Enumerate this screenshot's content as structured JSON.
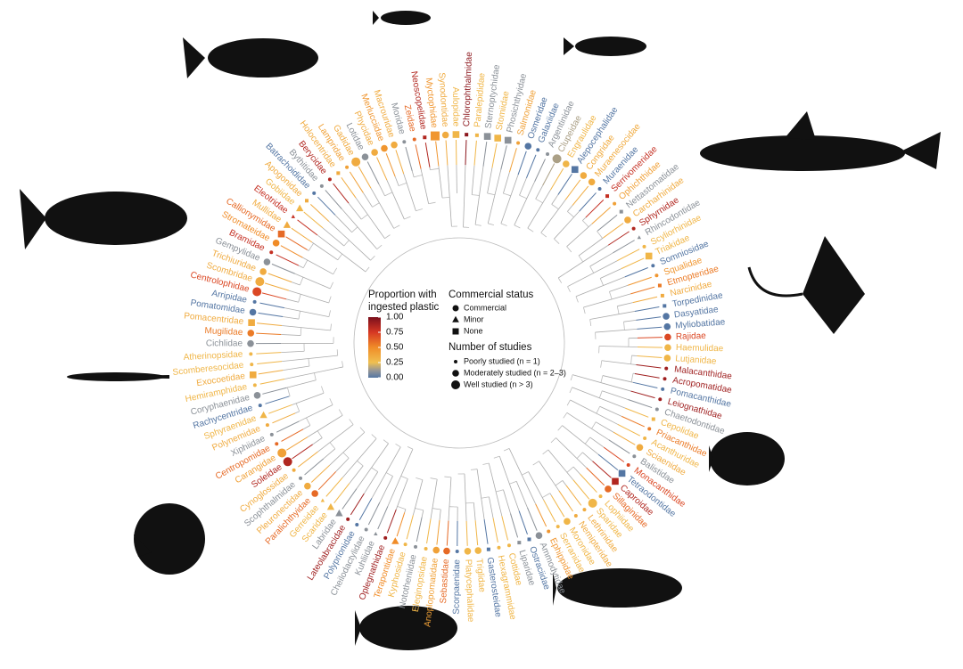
{
  "chart_data": {
    "type": "circular-tree",
    "color_legend": {
      "title_lines": [
        "Proportion with",
        "ingested plastic"
      ],
      "ticks": [
        {
          "value": 1,
          "label": "1.00"
        },
        {
          "value": 0.75,
          "label": "0.75"
        },
        {
          "value": 0.5,
          "label": "0.50"
        },
        {
          "value": 0.25,
          "label": "0.25"
        },
        {
          "value": 0,
          "label": "0.00"
        }
      ],
      "lim": [
        0,
        1
      ]
    },
    "status_legend": {
      "title": "Commercial status",
      "items": [
        "Commercial",
        "Minor",
        "None"
      ]
    },
    "studies_legend": {
      "title": "Number of studies",
      "items": [
        "Poorly studied (n = 1)",
        "Moderately studied (n = 2–3)",
        "Well studied (n > 3)"
      ]
    },
    "tips": [
      {
        "label": "Chlorophthalmidae",
        "value": 0.95,
        "status": 2,
        "studies": 0
      },
      {
        "label": "Paralepididae",
        "value": 0.3,
        "status": 2,
        "studies": 0
      },
      {
        "label": "Sternoptychidae",
        "value": 0.1,
        "status": 2,
        "studies": 1
      },
      {
        "label": "Stomiidae",
        "value": 0.3,
        "status": 2,
        "studies": 1
      },
      {
        "label": "Phosichthyidae",
        "value": 0.1,
        "status": 2,
        "studies": 1
      },
      {
        "label": "Salmonidae",
        "value": 0.4,
        "status": 0,
        "studies": 0
      },
      {
        "label": "Osmeridae",
        "value": 0.0,
        "status": 0,
        "studies": 1
      },
      {
        "label": "Galaxiidae",
        "value": 0.0,
        "status": 0,
        "studies": 0
      },
      {
        "label": "Argentinidae",
        "value": 0.1,
        "status": 0,
        "studies": 0
      },
      {
        "label": "Clupeidae",
        "value": 0.15,
        "status": 0,
        "studies": 2
      },
      {
        "label": "Engraulidae",
        "value": 0.3,
        "status": 0,
        "studies": 1
      },
      {
        "label": "Alepocephalidae",
        "value": 0.0,
        "status": 2,
        "studies": 1
      },
      {
        "label": "Congridae",
        "value": 0.35,
        "status": 0,
        "studies": 1
      },
      {
        "label": "Muraenesocidae",
        "value": 0.35,
        "status": 0,
        "studies": 1
      },
      {
        "label": "Muraenidae",
        "value": 0.0,
        "status": 0,
        "studies": 0
      },
      {
        "label": "Serrivomeridae",
        "value": 0.8,
        "status": 2,
        "studies": 0
      },
      {
        "label": "Ophichthidae",
        "value": 0.4,
        "status": 0,
        "studies": 0
      },
      {
        "label": "Nettastomatidae",
        "value": 0.1,
        "status": 2,
        "studies": 0
      },
      {
        "label": "Carcharhinidae",
        "value": 0.35,
        "status": 0,
        "studies": 1
      },
      {
        "label": "Sphyrnidae",
        "value": 0.85,
        "status": 0,
        "studies": 0
      },
      {
        "label": "Rhincodontidae",
        "value": 0.1,
        "status": 1,
        "studies": 0
      },
      {
        "label": "Scyliorhinidae",
        "value": 0.3,
        "status": 0,
        "studies": 0
      },
      {
        "label": "Triakidae",
        "value": 0.3,
        "status": 2,
        "studies": 1
      },
      {
        "label": "Somniosidae",
        "value": 0.0,
        "status": 0,
        "studies": 0
      },
      {
        "label": "Squalidae",
        "value": 0.45,
        "status": 0,
        "studies": 0
      },
      {
        "label": "Etmopteridae",
        "value": 0.55,
        "status": 2,
        "studies": 0
      },
      {
        "label": "Narcinidae",
        "value": 0.35,
        "status": 2,
        "studies": 0
      },
      {
        "label": "Torpedinidae",
        "value": 0.0,
        "status": 2,
        "studies": 0
      },
      {
        "label": "Dasyatidae",
        "value": 0.0,
        "status": 0,
        "studies": 1
      },
      {
        "label": "Myliobatidae",
        "value": 0.0,
        "status": 0,
        "studies": 1
      },
      {
        "label": "Rajidae",
        "value": 0.7,
        "status": 0,
        "studies": 1
      },
      {
        "label": "Haemulidae",
        "value": 0.3,
        "status": 0,
        "studies": 1
      },
      {
        "label": "Lutjanidae",
        "value": 0.3,
        "status": 0,
        "studies": 1
      },
      {
        "label": "Malacanthidae",
        "value": 0.9,
        "status": 0,
        "studies": 0
      },
      {
        "label": "Acropomatidae",
        "value": 0.9,
        "status": 0,
        "studies": 0
      },
      {
        "label": "Pomacanthidae",
        "value": 0.0,
        "status": 0,
        "studies": 0
      },
      {
        "label": "Leiognathidae",
        "value": 0.9,
        "status": 0,
        "studies": 0
      },
      {
        "label": "Chaetodontidae",
        "value": 0.1,
        "status": 0,
        "studies": 0
      },
      {
        "label": "Cepolidae",
        "value": 0.3,
        "status": 2,
        "studies": 0
      },
      {
        "label": "Priacanthidae",
        "value": 0.55,
        "status": 0,
        "studies": 0
      },
      {
        "label": "Acanthuridae",
        "value": 0.3,
        "status": 0,
        "studies": 0
      },
      {
        "label": "Sciaenidae",
        "value": 0.35,
        "status": 0,
        "studies": 1
      },
      {
        "label": "Balistidae",
        "value": 0.1,
        "status": 0,
        "studies": 0
      },
      {
        "label": "Monacanthidae",
        "value": 0.7,
        "status": 0,
        "studies": 0
      },
      {
        "label": "Tetraodontidae",
        "value": 0.0,
        "status": 2,
        "studies": 1
      },
      {
        "label": "Caproidae",
        "value": 0.85,
        "status": 2,
        "studies": 1
      },
      {
        "label": "Sillaginidae",
        "value": 0.6,
        "status": 0,
        "studies": 1
      },
      {
        "label": "Lophiidae",
        "value": 0.3,
        "status": 0,
        "studies": 0
      },
      {
        "label": "Sparidae",
        "value": 0.3,
        "status": 0,
        "studies": 2
      },
      {
        "label": "Lethrinidae",
        "value": 0.35,
        "status": 0,
        "studies": 0
      },
      {
        "label": "Nemipteridae",
        "value": 0.35,
        "status": 0,
        "studies": 0
      },
      {
        "label": "Moronidae",
        "value": 0.3,
        "status": 0,
        "studies": 1
      },
      {
        "label": "Serranidae",
        "value": 0.3,
        "status": 0,
        "studies": 0
      },
      {
        "label": "Ephippidae",
        "value": 0.45,
        "status": 0,
        "studies": 0
      },
      {
        "label": "Ammodytidae",
        "value": 0.1,
        "status": 0,
        "studies": 1
      },
      {
        "label": "Ostraciidae",
        "value": 0.0,
        "status": 2,
        "studies": 0
      },
      {
        "label": "Liparidae",
        "value": 0.1,
        "status": 2,
        "studies": 0
      },
      {
        "label": "Cottidae",
        "value": 0.3,
        "status": 0,
        "studies": 0
      },
      {
        "label": "Hexagrammidae",
        "value": 0.3,
        "status": 0,
        "studies": 0
      },
      {
        "label": "Gasterosteidae",
        "value": 0.0,
        "status": 2,
        "studies": 0
      },
      {
        "label": "Triglidae",
        "value": 0.3,
        "status": 0,
        "studies": 1
      },
      {
        "label": "Platycephalidae",
        "value": 0.3,
        "status": 0,
        "studies": 1
      },
      {
        "label": "Scorpaenidae",
        "value": 0.0,
        "status": 0,
        "studies": 0
      },
      {
        "label": "Sebastidae",
        "value": 0.6,
        "status": 0,
        "studies": 1
      },
      {
        "label": "Anoplopomatidae",
        "value": 0.4,
        "status": 0,
        "studies": 1
      },
      {
        "label": "Eleginopsidae",
        "value": 0.3,
        "status": 0,
        "studies": 0
      },
      {
        "label": "Nototheniidae",
        "value": 0.1,
        "status": 0,
        "studies": 0
      },
      {
        "label": "Kyphosidae",
        "value": 0.3,
        "status": 0,
        "studies": 0
      },
      {
        "label": "Terapontidae",
        "value": 0.5,
        "status": 1,
        "studies": 1
      },
      {
        "label": "Oplegnathidae",
        "value": 0.9,
        "status": 0,
        "studies": 0
      },
      {
        "label": "Kuhliidae",
        "value": 0.1,
        "status": 1,
        "studies": 0
      },
      {
        "label": "Cheilodactylidae",
        "value": 0.1,
        "status": 0,
        "studies": 0
      },
      {
        "label": "Polyprionidae",
        "value": 0.0,
        "status": 0,
        "studies": 0
      },
      {
        "label": "Lateolabracidae",
        "value": 0.9,
        "status": 0,
        "studies": 0
      },
      {
        "label": "Labridae",
        "value": 0.1,
        "status": 1,
        "studies": 1
      },
      {
        "label": "Scaridae",
        "value": 0.3,
        "status": 1,
        "studies": 1
      },
      {
        "label": "Gerreidae",
        "value": 0.3,
        "status": 1,
        "studies": 0
      },
      {
        "label": "Paralichthyidae",
        "value": 0.6,
        "status": 0,
        "studies": 1
      },
      {
        "label": "Pleuronectidae",
        "value": 0.35,
        "status": 0,
        "studies": 1
      },
      {
        "label": "Scophthalmidae",
        "value": 0.1,
        "status": 0,
        "studies": 0
      },
      {
        "label": "Cynoglossidae",
        "value": 0.35,
        "status": 0,
        "studies": 0
      },
      {
        "label": "Soleidae",
        "value": 0.85,
        "status": 0,
        "studies": 2
      },
      {
        "label": "Carangidae",
        "value": 0.4,
        "status": 0,
        "studies": 2
      },
      {
        "label": "Centropomidae",
        "value": 0.6,
        "status": 0,
        "studies": 0
      },
      {
        "label": "Xiphiidae",
        "value": 0.1,
        "status": 0,
        "studies": 0
      },
      {
        "label": "Polynemidae",
        "value": 0.35,
        "status": 0,
        "studies": 0
      },
      {
        "label": "Sphyraenidae",
        "value": 0.3,
        "status": 1,
        "studies": 1
      },
      {
        "label": "Rachycentridae",
        "value": 0.0,
        "status": 0,
        "studies": 0
      },
      {
        "label": "Coryphaenidae",
        "value": 0.1,
        "status": 0,
        "studies": 1
      },
      {
        "label": "Hemiramphidae",
        "value": 0.3,
        "status": 0,
        "studies": 0
      },
      {
        "label": "Exocoetidae",
        "value": 0.35,
        "status": 2,
        "studies": 1
      },
      {
        "label": "Scomberesocidae",
        "value": 0.3,
        "status": 0,
        "studies": 0
      },
      {
        "label": "Atherinopsidae",
        "value": 0.3,
        "status": 0,
        "studies": 0
      },
      {
        "label": "Cichlidae",
        "value": 0.1,
        "status": 0,
        "studies": 1
      },
      {
        "label": "Mugilidae",
        "value": 0.55,
        "status": 0,
        "studies": 1
      },
      {
        "label": "Pomacentridae",
        "value": 0.35,
        "status": 2,
        "studies": 1
      },
      {
        "label": "Pomatomidae",
        "value": 0.0,
        "status": 0,
        "studies": 1
      },
      {
        "label": "Arripidae",
        "value": 0.0,
        "status": 0,
        "studies": 0
      },
      {
        "label": "Centrolophidae",
        "value": 0.7,
        "status": 0,
        "studies": 2
      },
      {
        "label": "Scombridae",
        "value": 0.35,
        "status": 0,
        "studies": 2
      },
      {
        "label": "Trichiuridae",
        "value": 0.35,
        "status": 0,
        "studies": 1
      },
      {
        "label": "Gempylidae",
        "value": 0.1,
        "status": 0,
        "studies": 1
      },
      {
        "label": "Bramidae",
        "value": 0.8,
        "status": 0,
        "studies": 0
      },
      {
        "label": "Stromateidae",
        "value": 0.5,
        "status": 0,
        "studies": 1
      },
      {
        "label": "Callionymidae",
        "value": 0.6,
        "status": 2,
        "studies": 1
      },
      {
        "label": "Mullidae",
        "value": 0.35,
        "status": 1,
        "studies": 1
      },
      {
        "label": "Eleotridae",
        "value": 0.8,
        "status": 1,
        "studies": 0
      },
      {
        "label": "Gobiidae",
        "value": 0.3,
        "status": 1,
        "studies": 1
      },
      {
        "label": "Apogonidae",
        "value": 0.35,
        "status": 2,
        "studies": 0
      },
      {
        "label": "Batrachoididae",
        "value": 0.0,
        "status": 0,
        "studies": 0
      },
      {
        "label": "Bythitidae",
        "value": 0.1,
        "status": 0,
        "studies": 0
      },
      {
        "label": "Berycidae",
        "value": 0.85,
        "status": 0,
        "studies": 0
      },
      {
        "label": "Holocentridae",
        "value": 0.35,
        "status": 2,
        "studies": 0
      },
      {
        "label": "Lampridae",
        "value": 0.4,
        "status": 0,
        "studies": 0
      },
      {
        "label": "Gadidae",
        "value": 0.35,
        "status": 0,
        "studies": 2
      },
      {
        "label": "Lotidae",
        "value": 0.1,
        "status": 0,
        "studies": 1
      },
      {
        "label": "Phycidae",
        "value": 0.35,
        "status": 0,
        "studies": 1
      },
      {
        "label": "Merlucciidae",
        "value": 0.45,
        "status": 0,
        "studies": 1
      },
      {
        "label": "Macrouridae",
        "value": 0.35,
        "status": 0,
        "studies": 1
      },
      {
        "label": "Moridae",
        "value": 0.1,
        "status": 0,
        "studies": 0
      },
      {
        "label": "Zeidae",
        "value": 0.6,
        "status": 0,
        "studies": 0
      },
      {
        "label": "Neoscopelidae",
        "value": 0.85,
        "status": 2,
        "studies": 0
      },
      {
        "label": "Myctophidae",
        "value": 0.45,
        "status": 2,
        "studies": 2
      },
      {
        "label": "Synodontidae",
        "value": 0.35,
        "status": 0,
        "studies": 1
      },
      {
        "label": "Aulopidae",
        "value": 0.3,
        "status": 2,
        "studies": 1
      }
    ]
  }
}
